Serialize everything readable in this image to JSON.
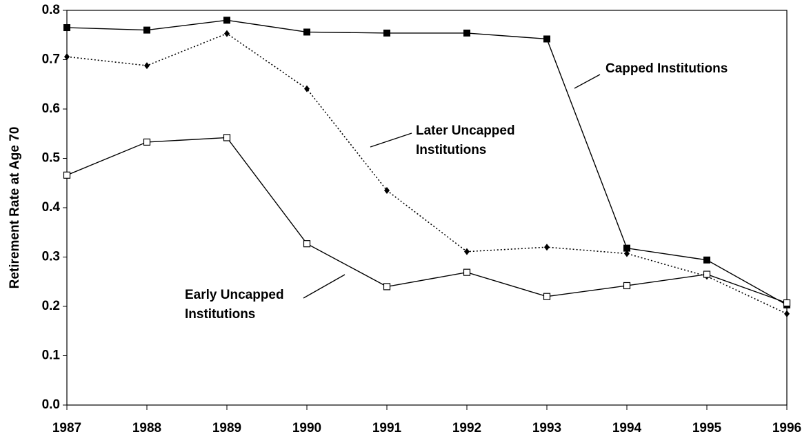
{
  "chart_data": {
    "type": "line",
    "y_label": "Retirement Rate at Age 70",
    "x": [
      1987,
      1988,
      1989,
      1990,
      1991,
      1992,
      1993,
      1994,
      1995,
      1996
    ],
    "xlim": [
      1987,
      1996
    ],
    "xticks": [
      1987,
      1988,
      1989,
      1990,
      1991,
      1992,
      1993,
      1994,
      1995,
      1996
    ],
    "ylim": [
      0,
      0.8
    ],
    "yticks": [
      {
        "value": 0,
        "label": "0.0"
      },
      0.1,
      0.2,
      0.3,
      0.4,
      0.5,
      0.6,
      0.7,
      0.8
    ],
    "grid": false,
    "series": [
      {
        "name": "Capped Institutions",
        "color": "#000000",
        "marker": "square",
        "line_style": "solid",
        "values": [
          0.765,
          0.76,
          0.78,
          0.756,
          0.754,
          0.754,
          0.742,
          0.318,
          0.294,
          0.203
        ]
      },
      {
        "name": "Later Uncapped Institutions",
        "color": "#000000",
        "marker": "diamond",
        "line_style": "dotted",
        "values": [
          0.706,
          0.688,
          0.753,
          0.641,
          0.435,
          0.311,
          0.32,
          0.307,
          0.261,
          0.185
        ]
      },
      {
        "name": "Early Uncapped Institutions",
        "color": "#000000",
        "marker": "open-square",
        "line_style": "solid",
        "values": [
          0.466,
          0.533,
          0.542,
          0.327,
          0.24,
          0.269,
          0.22,
          0.242,
          0.265,
          0.207
        ]
      }
    ]
  }
}
